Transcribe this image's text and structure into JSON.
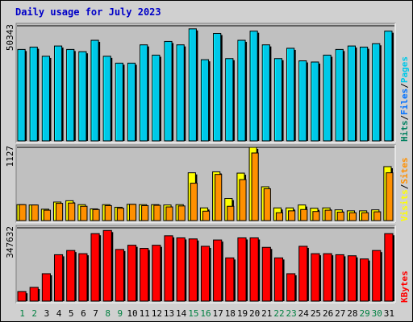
{
  "title": "Daily usage for July 2023",
  "colors": {
    "pages": "#00c8e8",
    "files": "#0070ff",
    "hits": "#008060",
    "sites": "#ff9000",
    "visits": "#ffff00",
    "kbytes": "#ff0000",
    "separator": "#000000",
    "weekend": "#008040",
    "weekday": "#000000",
    "title": "#0000c8",
    "plot_bg": "#c0c0c0"
  },
  "chart_data": [
    {
      "type": "bar",
      "name": "hits-files-pages",
      "ymax_label": "50343",
      "ylim": [
        0,
        50343
      ],
      "categories": [
        "1",
        "2",
        "3",
        "4",
        "5",
        "6",
        "7",
        "8",
        "9",
        "10",
        "11",
        "12",
        "13",
        "14",
        "15",
        "16",
        "17",
        "18",
        "19",
        "20",
        "21",
        "22",
        "23",
        "24",
        "25",
        "26",
        "27",
        "28",
        "29",
        "30",
        "31"
      ],
      "series": [
        {
          "name": "Pages",
          "values": [
            40000,
            41000,
            37000,
            41500,
            40000,
            39000,
            44000,
            37000,
            34000,
            34000,
            42000,
            37500,
            43500,
            42000,
            49000,
            35500,
            47000,
            36000,
            44000,
            48000,
            42000,
            36000,
            40500,
            35000,
            34500,
            37500,
            40000,
            41500,
            41000,
            42500,
            48000
          ]
        },
        {
          "name": "Files",
          "values": [
            40000,
            41000,
            37000,
            41500,
            40000,
            39000,
            44000,
            37000,
            34000,
            34000,
            42000,
            37500,
            43500,
            42000,
            49000,
            35500,
            47000,
            36000,
            44000,
            48000,
            42000,
            36000,
            40500,
            35000,
            34500,
            37500,
            40000,
            41500,
            41000,
            42500,
            48000
          ]
        },
        {
          "name": "Hits",
          "values": [
            40000,
            41000,
            37000,
            41500,
            40000,
            39000,
            44000,
            37000,
            34000,
            34000,
            42000,
            37500,
            43500,
            42000,
            49000,
            35500,
            47000,
            36000,
            44000,
            48000,
            42000,
            36000,
            40500,
            35000,
            34500,
            37500,
            40000,
            41500,
            41000,
            42500,
            48000
          ]
        }
      ]
    },
    {
      "type": "bar",
      "name": "visits-sites",
      "ymax_label": "1127",
      "ylim": [
        0,
        1127
      ],
      "categories": [
        "1",
        "2",
        "3",
        "4",
        "5",
        "6",
        "7",
        "8",
        "9",
        "10",
        "11",
        "12",
        "13",
        "14",
        "15",
        "16",
        "17",
        "18",
        "19",
        "20",
        "21",
        "22",
        "23",
        "24",
        "25",
        "26",
        "27",
        "28",
        "29",
        "30",
        "31"
      ],
      "series": [
        {
          "name": "Visits",
          "values": [
            245,
            240,
            175,
            285,
            305,
            245,
            180,
            245,
            205,
            250,
            245,
            245,
            240,
            245,
            735,
            195,
            750,
            340,
            730,
            1127,
            520,
            195,
            195,
            240,
            190,
            195,
            165,
            150,
            150,
            165,
            830
          ]
        },
        {
          "name": "Sites",
          "values": [
            245,
            240,
            160,
            265,
            270,
            220,
            170,
            230,
            190,
            250,
            230,
            235,
            210,
            225,
            575,
            145,
            710,
            220,
            630,
            1040,
            490,
            120,
            150,
            170,
            140,
            160,
            130,
            120,
            120,
            135,
            735
          ]
        }
      ]
    },
    {
      "type": "bar",
      "name": "kbytes",
      "ymax_label": "347632",
      "ylim": [
        0,
        347632
      ],
      "categories": [
        "1",
        "2",
        "3",
        "4",
        "5",
        "6",
        "7",
        "8",
        "9",
        "10",
        "11",
        "12",
        "13",
        "14",
        "15",
        "16",
        "17",
        "18",
        "19",
        "20",
        "21",
        "22",
        "23",
        "24",
        "25",
        "26",
        "27",
        "28",
        "29",
        "30",
        "31"
      ],
      "series": [
        {
          "name": "KBytes",
          "values": [
            45000,
            65000,
            130000,
            220000,
            240000,
            225000,
            320000,
            335000,
            245000,
            265000,
            250000,
            265000,
            310000,
            300000,
            295000,
            260000,
            290000,
            205000,
            300000,
            300000,
            255000,
            205000,
            130000,
            260000,
            225000,
            225000,
            220000,
            215000,
            200000,
            240000,
            320000
          ]
        }
      ]
    }
  ],
  "legend_top": [
    {
      "text": "Hits",
      "color_key": "hits"
    },
    {
      "text": "/",
      "color_key": "separator"
    },
    {
      "text": "Files",
      "color_key": "files"
    },
    {
      "text": "/",
      "color_key": "separator"
    },
    {
      "text": "Pages",
      "color_key": "pages"
    }
  ],
  "legend_mid": [
    {
      "text": "Visits",
      "color_key": "visits"
    },
    {
      "text": "/",
      "color_key": "separator"
    },
    {
      "text": "Sites",
      "color_key": "sites"
    }
  ],
  "legend_bot": [
    {
      "text": "KBytes",
      "color_key": "kbytes"
    }
  ],
  "weekend_days": [
    1,
    2,
    8,
    9,
    15,
    16,
    22,
    23,
    29,
    30
  ]
}
